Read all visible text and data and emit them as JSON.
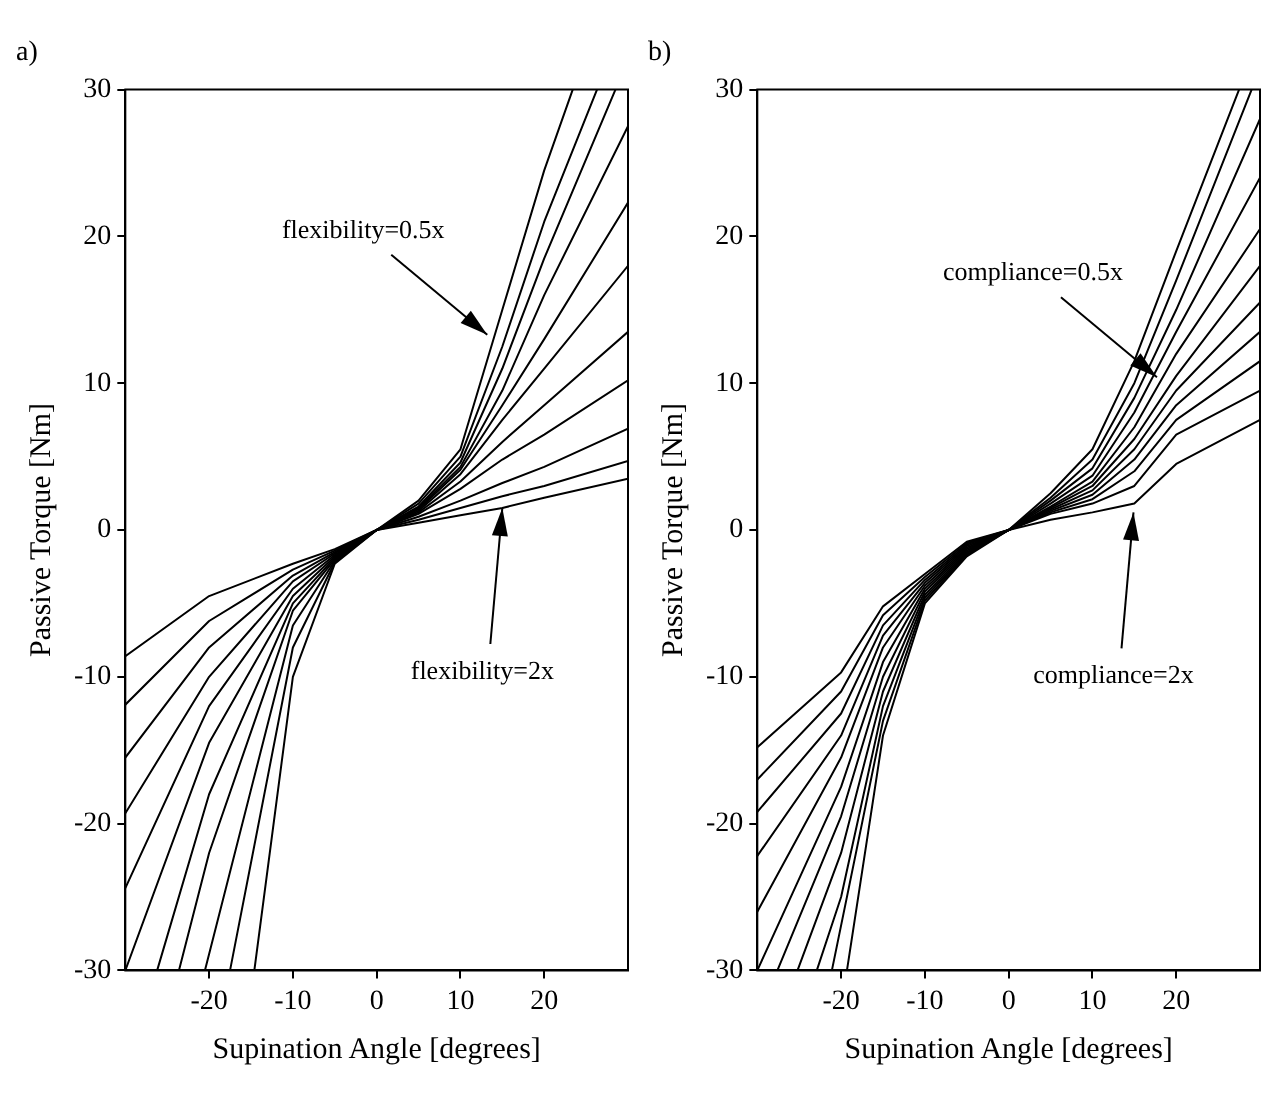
{
  "chart_data": [
    {
      "type": "line",
      "title": "a)",
      "xlabel": "Supination Angle [degrees]",
      "ylabel": "Passive Torque [Nm]",
      "xlim": [
        -30,
        30
      ],
      "ylim": [
        -30,
        30
      ],
      "xticks": [
        -20,
        -10,
        0,
        10,
        20
      ],
      "yticks": [
        -30,
        -20,
        -10,
        0,
        10,
        20,
        30
      ],
      "grid": false,
      "marker": "none",
      "annotations": [
        {
          "text": "flexibility=0.5x",
          "x": 13.2,
          "y": 13.3
        },
        {
          "text": "flexibility=2x",
          "x": 15,
          "y": 1.5
        }
      ],
      "series": [
        {
          "color": "#000000",
          "x": [
            -14.6,
            -10,
            -5,
            0,
            5,
            10,
            15,
            20,
            23.4
          ],
          "values": [
            -30,
            -10,
            -2.3,
            0,
            2,
            5.5,
            15,
            24.5,
            30
          ]
        },
        {
          "color": "#000000",
          "x": [
            -17.5,
            -10,
            -5,
            0,
            5,
            10,
            15,
            20,
            26.3
          ],
          "values": [
            -30,
            -8,
            -2.2,
            0,
            1.8,
            5,
            12.5,
            21,
            30
          ]
        },
        {
          "color": "#000000",
          "x": [
            -20.5,
            -10,
            -5,
            0,
            5,
            10,
            15,
            20,
            28.5
          ],
          "values": [
            -30,
            -6.5,
            -2.1,
            0,
            1.6,
            4.6,
            11,
            18.5,
            30
          ]
        },
        {
          "color": "#000000",
          "x": [
            -23.6,
            -20,
            -10,
            -5,
            0,
            5,
            10,
            15,
            20,
            30
          ],
          "values": [
            -30,
            -22,
            -5.5,
            -2,
            0,
            1.5,
            4.3,
            9.5,
            16,
            27.5
          ]
        },
        {
          "color": "#000000",
          "x": [
            -26.2,
            -20,
            -10,
            -5,
            0,
            5,
            10,
            15,
            20,
            30
          ],
          "values": [
            -30,
            -18,
            -5,
            -1.9,
            0,
            1.4,
            4.1,
            8.5,
            13,
            22.3
          ]
        },
        {
          "color": "#000000",
          "x": [
            -30,
            -20,
            -10,
            -5,
            0,
            5,
            10,
            15,
            20,
            30
          ],
          "values": [
            -30,
            -14.5,
            -4.5,
            -1.8,
            0,
            1.3,
            3.8,
            7.5,
            11,
            18
          ]
        },
        {
          "color": "#000000",
          "x": [
            -30,
            -20,
            -10,
            -5,
            0,
            5,
            10,
            15,
            20,
            30
          ],
          "values": [
            -24.4,
            -12,
            -4,
            -1.7,
            0,
            1.2,
            3.3,
            6,
            8.5,
            13.5
          ]
        },
        {
          "color": "#000000",
          "x": [
            -30,
            -20,
            -10,
            -5,
            0,
            5,
            10,
            15,
            20,
            30
          ],
          "values": [
            -19.3,
            -10,
            -3.5,
            -1.6,
            0,
            1.1,
            2.8,
            4.8,
            6.5,
            10.2
          ]
        },
        {
          "color": "#000000",
          "x": [
            -30,
            -20,
            -10,
            -5,
            0,
            5,
            10,
            15,
            20,
            30
          ],
          "values": [
            -15.5,
            -8,
            -3.1,
            -1.5,
            0,
            0.9,
            2,
            3.2,
            4.3,
            6.9
          ]
        },
        {
          "color": "#000000",
          "x": [
            -30,
            -20,
            -10,
            -5,
            0,
            5,
            10,
            15,
            20,
            30
          ],
          "values": [
            -11.9,
            -6.2,
            -2.7,
            -1.4,
            0,
            0.7,
            1.5,
            2.3,
            3,
            4.7
          ]
        },
        {
          "color": "#000000",
          "x": [
            -30,
            -20,
            -10,
            -5,
            0,
            5,
            10,
            15,
            20,
            30
          ],
          "values": [
            -8.6,
            -4.5,
            -2.3,
            -1.3,
            0,
            0.5,
            1,
            1.5,
            2.2,
            3.5
          ]
        }
      ]
    },
    {
      "type": "line",
      "title": "b)",
      "xlabel": "Supination Angle [degrees]",
      "ylabel": "Passive Torque [Nm]",
      "xlim": [
        -30,
        30
      ],
      "ylim": [
        -30,
        30
      ],
      "xticks": [
        -20,
        -10,
        0,
        10,
        20
      ],
      "yticks": [
        -30,
        -20,
        -10,
        0,
        10,
        20,
        30
      ],
      "grid": false,
      "marker": "none",
      "annotations": [
        {
          "text": "compliance=0.5x",
          "x": 17.7,
          "y": 10.4
        },
        {
          "text": "compliance=2x",
          "x": 14.9,
          "y": 1.2
        }
      ],
      "series": [
        {
          "color": "#000000",
          "x": [
            -19.3,
            -15,
            -10,
            -5,
            0,
            5,
            10,
            15,
            20,
            27.5
          ],
          "values": [
            -30,
            -14,
            -5,
            -1.8,
            0,
            2.5,
            5.5,
            11.5,
            19,
            30
          ]
        },
        {
          "color": "#000000",
          "x": [
            -21.1,
            -15,
            -10,
            -5,
            0,
            5,
            10,
            15,
            20,
            29
          ],
          "values": [
            -30,
            -13,
            -4.8,
            -1.7,
            0,
            2.2,
            4.8,
            10,
            17,
            30
          ]
        },
        {
          "color": "#000000",
          "x": [
            -22.9,
            -20,
            -15,
            -10,
            -5,
            0,
            5,
            10,
            15,
            20,
            30
          ],
          "values": [
            -30,
            -25,
            -12,
            -4.6,
            -1.6,
            0,
            2,
            4.2,
            9,
            15,
            28
          ]
        },
        {
          "color": "#000000",
          "x": [
            -25.2,
            -20,
            -15,
            -10,
            -5,
            0,
            5,
            10,
            15,
            20,
            30
          ],
          "values": [
            -30,
            -22,
            -11,
            -4.4,
            -1.5,
            0,
            1.8,
            3.7,
            8,
            13.5,
            24
          ]
        },
        {
          "color": "#000000",
          "x": [
            -27.6,
            -20,
            -15,
            -10,
            -5,
            0,
            5,
            10,
            15,
            20,
            30
          ],
          "values": [
            -30,
            -19.5,
            -10,
            -4.2,
            -1.4,
            0,
            1.6,
            3.3,
            7,
            12,
            20.5
          ]
        },
        {
          "color": "#000000",
          "x": [
            -30,
            -20,
            -15,
            -10,
            -5,
            0,
            5,
            10,
            15,
            20,
            30
          ],
          "values": [
            -30,
            -17.5,
            -9,
            -4,
            -1.3,
            0,
            1.5,
            3,
            6.2,
            10.5,
            18
          ]
        },
        {
          "color": "#000000",
          "x": [
            -30,
            -20,
            -15,
            -10,
            -5,
            0,
            5,
            10,
            15,
            20,
            30
          ],
          "values": [
            -26,
            -15.5,
            -8,
            -3.8,
            -1.2,
            0,
            1.4,
            2.7,
            5.5,
            9.5,
            15.5
          ]
        },
        {
          "color": "#000000",
          "x": [
            -30,
            -20,
            -15,
            -10,
            -5,
            0,
            5,
            10,
            15,
            20,
            30
          ],
          "values": [
            -22.2,
            -14,
            -7.2,
            -3.6,
            -1.1,
            0,
            1.3,
            2.4,
            4.8,
            8.5,
            13.5
          ]
        },
        {
          "color": "#000000",
          "x": [
            -30,
            -20,
            -15,
            -10,
            -5,
            0,
            5,
            10,
            15,
            20,
            30
          ],
          "values": [
            -19.2,
            -12.5,
            -6.5,
            -3.4,
            -1,
            0,
            1.2,
            2.1,
            4,
            7.5,
            11.5
          ]
        },
        {
          "color": "#000000",
          "x": [
            -30,
            -20,
            -15,
            -10,
            -5,
            0,
            5,
            10,
            15,
            20,
            30
          ],
          "values": [
            -17,
            -11,
            -5.8,
            -3.2,
            -0.9,
            0,
            1.1,
            1.8,
            3,
            6.5,
            9.5
          ]
        },
        {
          "color": "#000000",
          "x": [
            -30,
            -20,
            -15,
            -10,
            -5,
            0,
            5,
            10,
            15,
            20,
            30
          ],
          "values": [
            -14.8,
            -9.7,
            -5.2,
            -3,
            -0.8,
            0,
            0.7,
            1.2,
            1.8,
            4.5,
            7.5
          ]
        }
      ]
    }
  ]
}
